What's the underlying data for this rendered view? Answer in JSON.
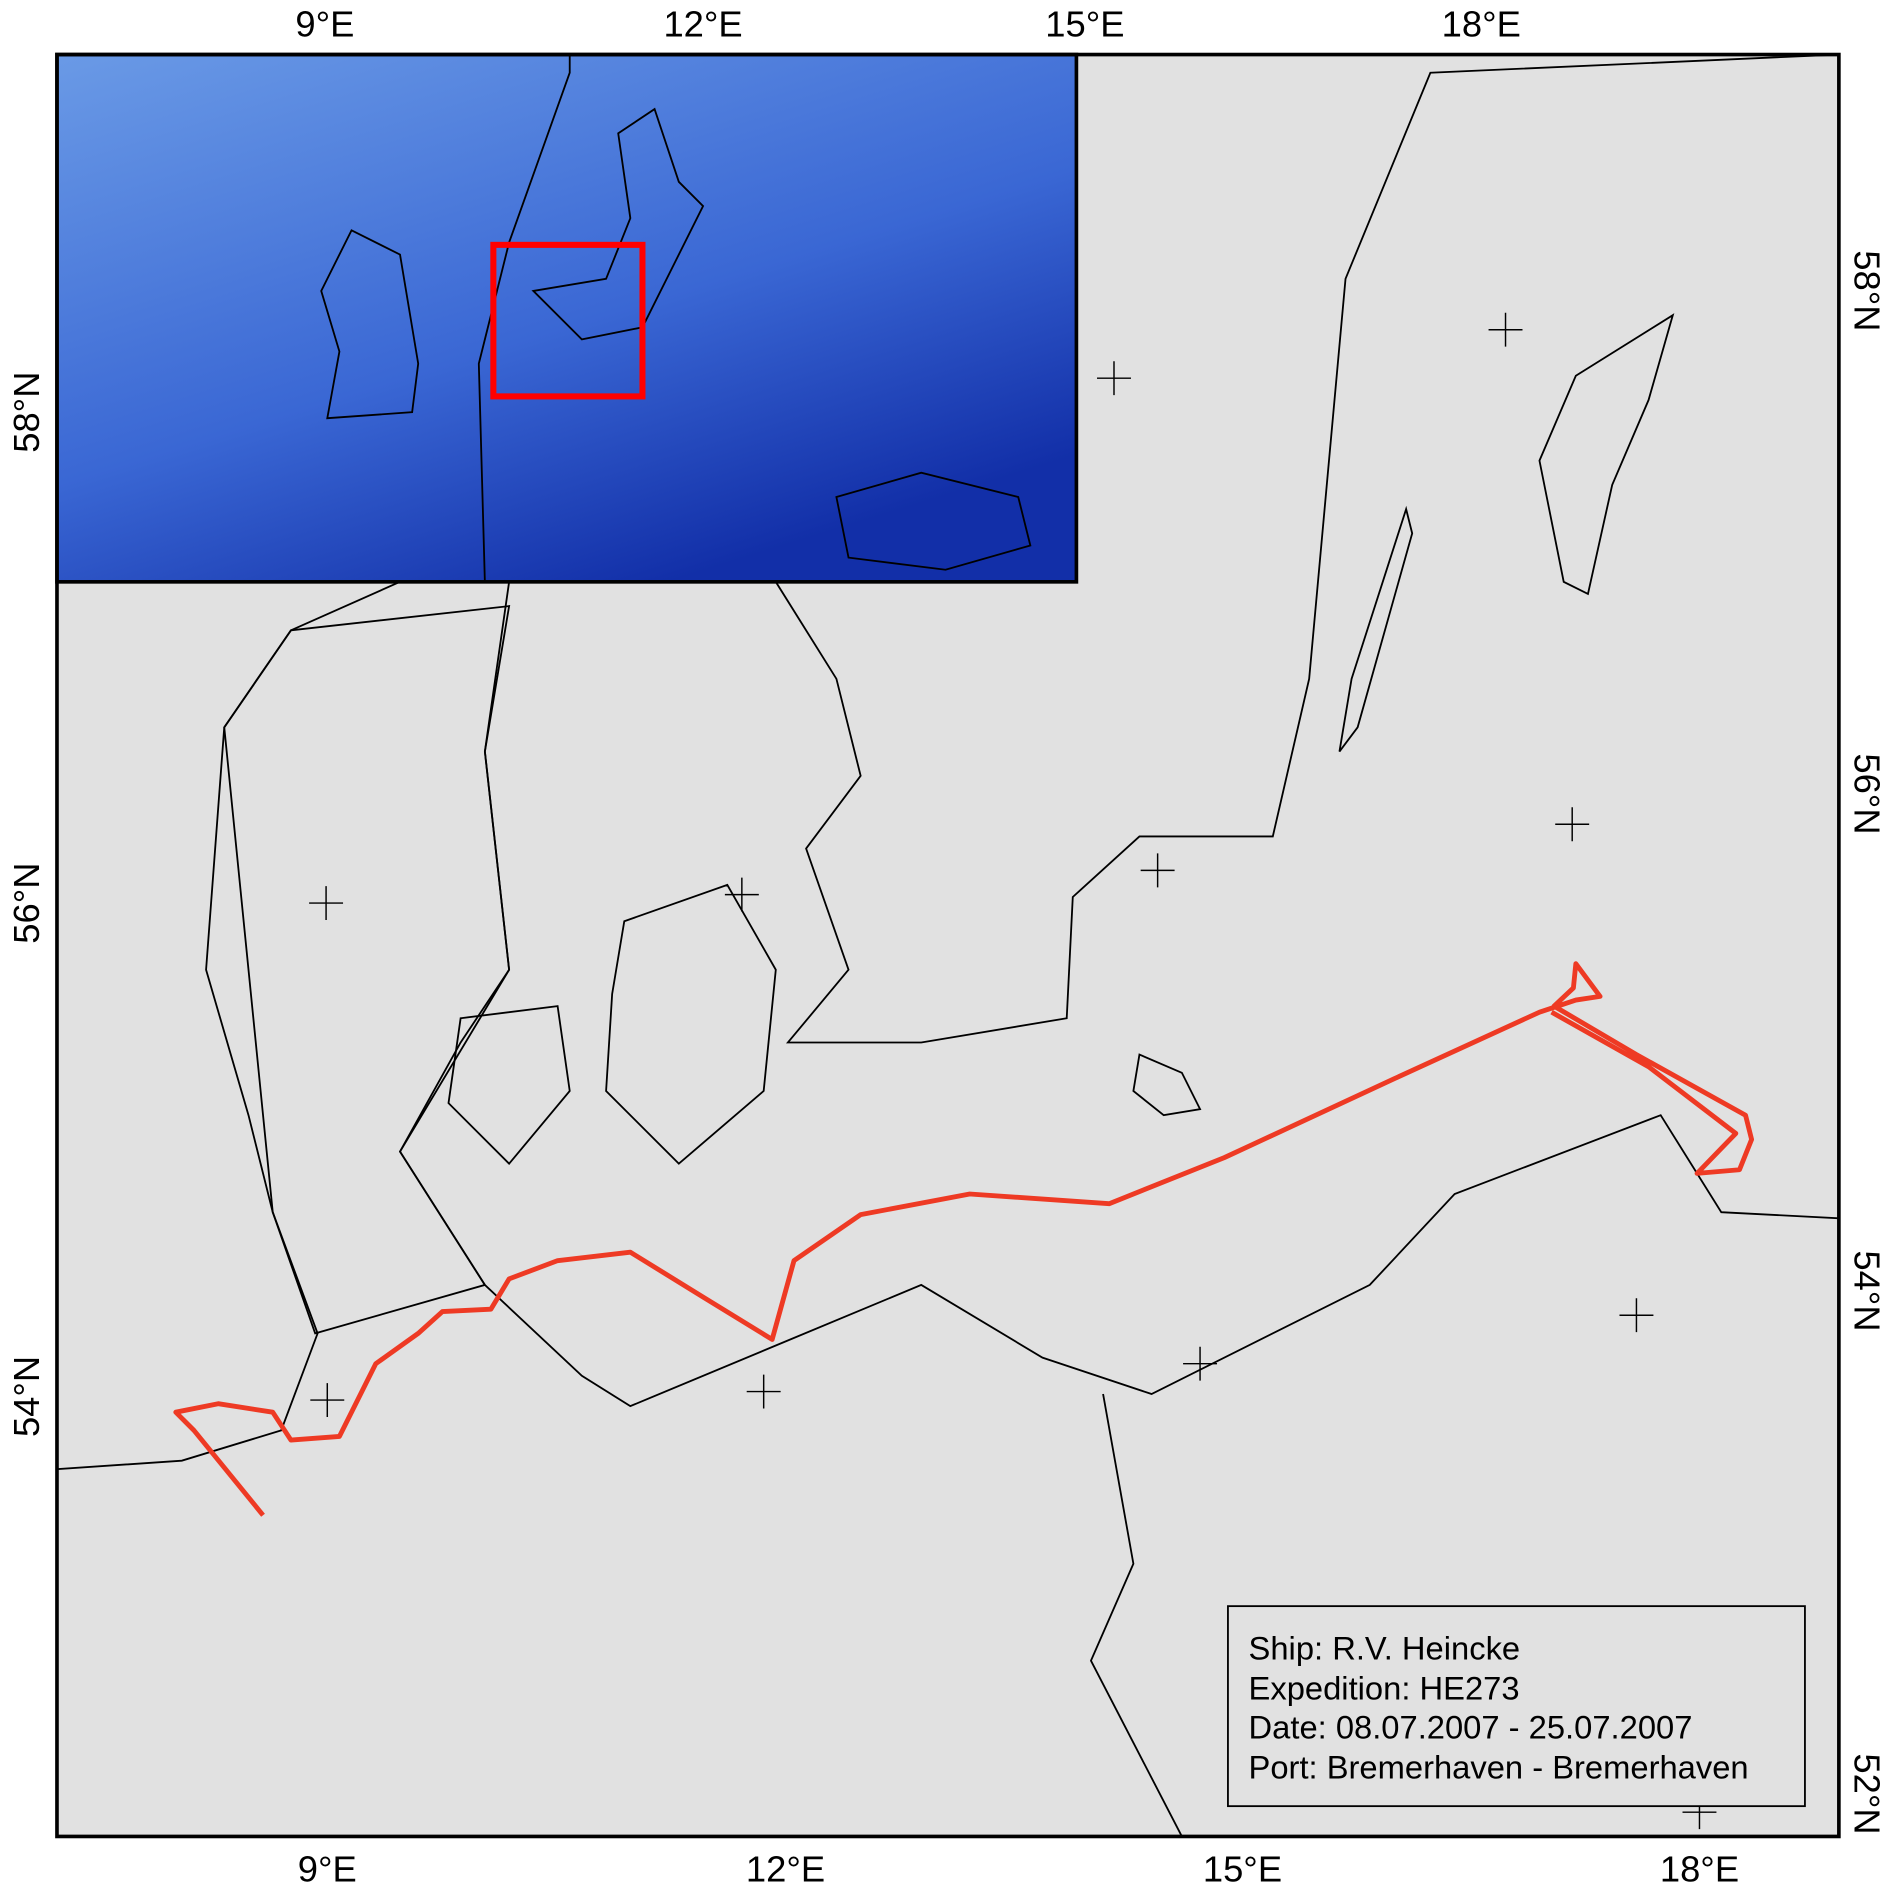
{
  "axes": {
    "top": [
      "9°E",
      "12°E",
      "15°E",
      "18°E"
    ],
    "bottom": [
      "9°E",
      "12°E",
      "15°E",
      "18°E"
    ],
    "left": [
      "58°N",
      "56°N",
      "54°N"
    ],
    "right": [
      "58°N",
      "56°N",
      "54°N",
      "52°N"
    ]
  },
  "legend": [
    "Ship: R.V. Heincke",
    "Expedition: HE273",
    "Date: 08.07.2007 - 25.07.2007",
    "Port: Bremerhaven - Bremerhaven"
  ]
}
